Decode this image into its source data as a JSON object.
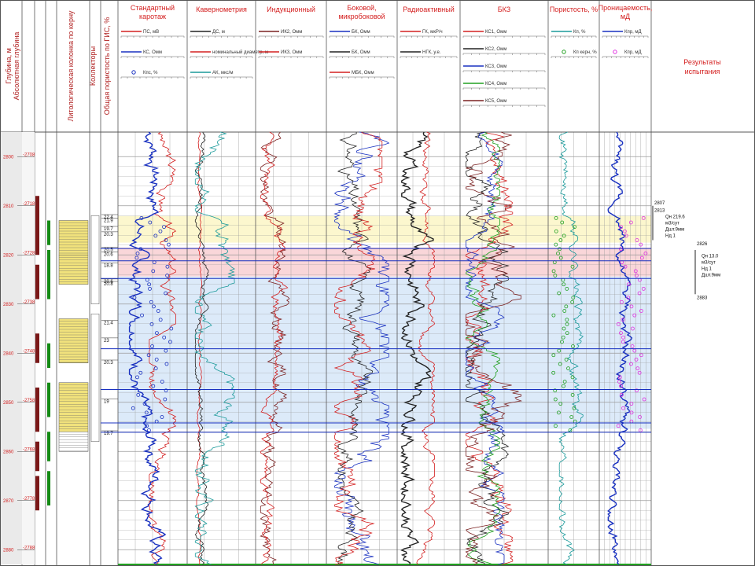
{
  "colors": {
    "grid": "#9a9a9a",
    "frame": "#555555",
    "yellow_band": "#fbf6c6",
    "pink_band": "#f8cfd2",
    "blue_band": "#d6e6f8",
    "red": "#d42020",
    "blue": "#1830c0",
    "teal": "#1a9a9a",
    "dark": "#222222",
    "brown": "#7a2020",
    "green": "#20a020",
    "magenta": "#e030e0",
    "lith_yellow": "#f1e27c",
    "dark_red": "#7a1818",
    "dark_green": "#148a14"
  },
  "left_headers": [
    {
      "id": "depth",
      "text": "Глубина, м",
      "sub": "Абсолютная глубина",
      "color": "#b02020"
    },
    {
      "id": "perf1",
      "text": "",
      "color": "#b02020"
    },
    {
      "id": "perf2",
      "text": "",
      "color": "#222222"
    },
    {
      "id": "lith",
      "text": "Литологическая колонка по керну",
      "color": "#b02020"
    },
    {
      "id": "coll",
      "text": "Коллекторы",
      "color": "#b02020"
    },
    {
      "id": "porosity",
      "text": "Общая пористость по ГИС, %",
      "color": "#b02020"
    }
  ],
  "tracks": [
    {
      "id": "std",
      "title": "Стандартный каротаж",
      "curves": [
        {
          "name": "ПС, мВ",
          "color": "#d42020"
        },
        {
          "name": "КС, Омм",
          "color": "#1830c0"
        },
        {
          "name": "Кпс, %",
          "color": "#1830c0",
          "marker": "circle"
        }
      ]
    },
    {
      "id": "cav",
      "title": "Кавернометрия",
      "curves": [
        {
          "name": "ДС, м",
          "color": "#222222"
        },
        {
          "name": "номинальный диаметр, м",
          "color": "#d42020"
        },
        {
          "name": "АК, мкс/м",
          "color": "#1a9a9a"
        }
      ]
    },
    {
      "id": "ind",
      "title": "Индукционный",
      "curves": [
        {
          "name": "ИК2, Омм",
          "color": "#7a2020"
        },
        {
          "name": "ИК3, Омм",
          "color": "#d42020"
        }
      ]
    },
    {
      "id": "lat",
      "title": "Боковой, микробоковой",
      "curves": [
        {
          "name": "БК, Омм",
          "color": "#1830c0"
        },
        {
          "name": "БК, Омм",
          "color": "#222222"
        },
        {
          "name": "МБК, Омм",
          "color": "#d42020"
        }
      ]
    },
    {
      "id": "rad",
      "title": "Радиоактивный",
      "curves": [
        {
          "name": "ГК, мкР/ч",
          "color": "#d42020"
        },
        {
          "name": "НГК, у.е.",
          "color": "#222222"
        }
      ]
    },
    {
      "id": "bkz",
      "title": "БКЗ",
      "curves": [
        {
          "name": "КС1, Омм",
          "color": "#d42020"
        },
        {
          "name": "КС2, Омм",
          "color": "#222222"
        },
        {
          "name": "КС3, Омм",
          "color": "#1830c0"
        },
        {
          "name": "КС4, Омм",
          "color": "#20a020"
        },
        {
          "name": "КС5, Омм",
          "color": "#7a2020"
        }
      ]
    },
    {
      "id": "por",
      "title": "Пористость, %",
      "curves": [
        {
          "name": "Кп, %",
          "color": "#1a9a9a"
        },
        {
          "name": "Кп керн, %",
          "color": "#20a020",
          "marker": "circle"
        }
      ]
    },
    {
      "id": "perm",
      "title": "Проницаемость, мД",
      "curves": [
        {
          "name": "Кпр, мД",
          "color": "#1830c0"
        },
        {
          "name": "Кпр, мД",
          "color": "#e030e0",
          "marker": "circle"
        }
      ]
    }
  ],
  "results_header": "Результаты испытания",
  "chart_data": {
    "type": "well-log",
    "y_axis": {
      "label": "Глубина, м",
      "ylim": [
        2795,
        2883
      ],
      "reversed": true,
      "depth_ticks": [
        2800,
        2810,
        2820,
        2830,
        2840,
        2850,
        2860,
        2870,
        2880
      ]
    },
    "bands": [
      {
        "top": 2812.1,
        "bottom": 2817.5,
        "type": "yellow"
      },
      {
        "top": 2818.5,
        "bottom": 2824.4,
        "type": "pink"
      },
      {
        "top": 2824.4,
        "bottom": 2855.4,
        "type": "blue"
      }
    ],
    "bed_boundaries": [
      2818.7,
      2821.2,
      2824.8,
      2839.1,
      2847.4,
      2854.2,
      2856.1
    ],
    "porosity_values": [
      {
        "depth": 2812.6,
        "value": "22.4"
      },
      {
        "depth": 2813.3,
        "value": "21.9"
      },
      {
        "depth": 2815.0,
        "value": "19.7"
      },
      {
        "depth": 2816.1,
        "value": "20.3"
      },
      {
        "depth": 2819.2,
        "value": "20.5"
      },
      {
        "depth": 2820.2,
        "value": "20.6"
      },
      {
        "depth": 2822.4,
        "value": "18.8"
      },
      {
        "depth": 2825.7,
        "value": "20.6"
      },
      {
        "depth": 2826.2,
        "value": "20.8"
      },
      {
        "depth": 2834.1,
        "value": "21.4"
      },
      {
        "depth": 2837.7,
        "value": "23"
      },
      {
        "depth": 2842.2,
        "value": "20.3"
      },
      {
        "depth": 2850.1,
        "value": "19"
      },
      {
        "depth": 2856.6,
        "value": "19.7"
      }
    ],
    "tests": [
      {
        "top_label": "2807",
        "bottom_label": "2813",
        "lines": [
          "Qн 219.6",
          "м3/сут",
          "Дшт.9мм",
          "Нд 1"
        ]
      },
      {
        "top_label": "2826",
        "bottom_label": "2883",
        "lines": [
          "Qн 13.0",
          "м3/сут",
          "Нд 1",
          "Дшт.9мм"
        ]
      }
    ]
  }
}
